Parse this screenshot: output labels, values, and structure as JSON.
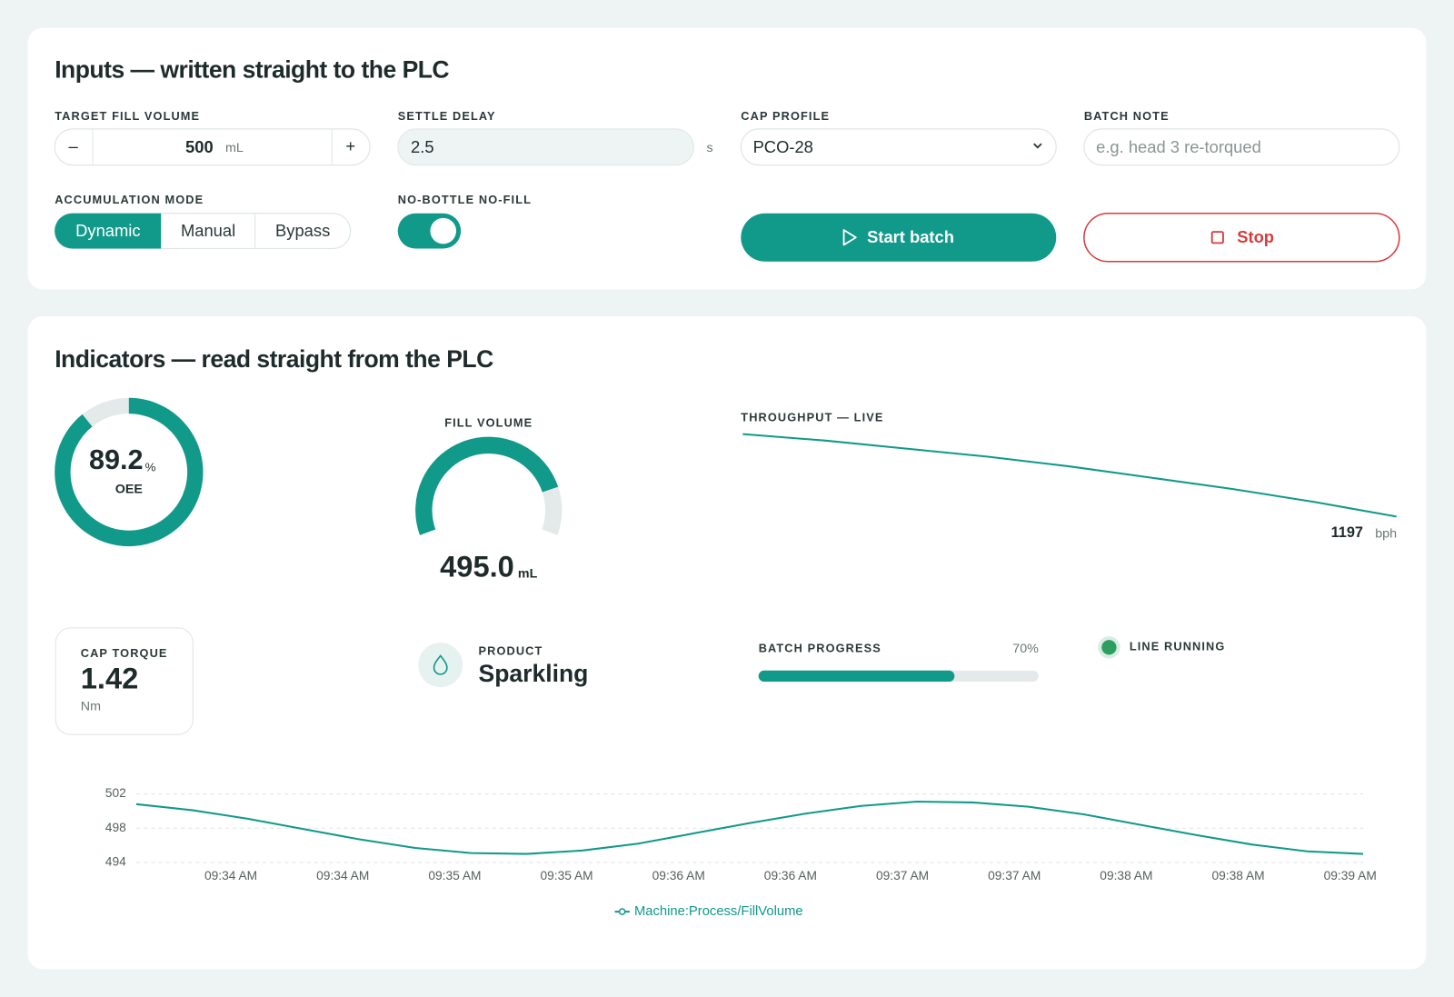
{
  "inputs": {
    "title": "Inputs — written straight to the PLC",
    "target_fill_volume": {
      "label": "TARGET FILL VOLUME",
      "minus": "–",
      "plus": "+",
      "value": 500,
      "unit": "mL"
    },
    "settle_delay": {
      "label": "SETTLE DELAY",
      "value": "2.5",
      "unit": "s"
    },
    "cap_profile": {
      "label": "CAP PROFILE",
      "value": "PCO-28"
    },
    "batch_note": {
      "label": "BATCH NOTE",
      "placeholder": "e.g. head 3 re-torqued"
    },
    "accumulation_mode": {
      "label": "ACCUMULATION MODE",
      "options": [
        "Dynamic",
        "Manual",
        "Bypass"
      ],
      "selected": 0
    },
    "no_bottle_no_fill": {
      "label": "NO-BOTTLE NO-FILL",
      "on": true
    },
    "start_button": "Start batch",
    "stop_button": "Stop"
  },
  "indicators": {
    "title": "Indicators — read straight from the PLC",
    "oee": {
      "value": 89.2,
      "unit": "%",
      "label": "OEE",
      "range": [
        0,
        100
      ]
    },
    "fill_volume": {
      "label": "FILL VOLUME",
      "value": 495.0,
      "value_label": "495.0",
      "unit": "mL",
      "range": [
        0,
        600
      ]
    },
    "throughput": {
      "label": "THROUGHPUT — LIVE",
      "value": 1197,
      "unit": "bph",
      "values": [
        1248,
        1244,
        1239,
        1234,
        1228,
        1221,
        1214,
        1206,
        1197
      ]
    },
    "cap_torque": {
      "label": "CAP TORQUE",
      "value": 1.42,
      "unit": "Nm"
    },
    "product": {
      "label": "PRODUCT",
      "value": "Sparkling"
    },
    "batch_progress": {
      "label": "BATCH PROGRESS",
      "value": 70,
      "value_label": "70%",
      "range": [
        0,
        100
      ]
    },
    "line_status": {
      "label": "LINE RUNNING"
    }
  },
  "trend": {
    "type": "line",
    "xticks": [
      "09:34 AM",
      "09:34 AM",
      "09:35 AM",
      "09:35 AM",
      "09:36 AM",
      "09:36 AM",
      "09:37 AM",
      "09:37 AM",
      "09:38 AM",
      "09:38 AM",
      "09:39 AM"
    ],
    "ylim": [
      494,
      502
    ],
    "yticks": [
      494,
      498,
      502
    ],
    "grid": true,
    "series": [
      {
        "name": "Machine:Process/FillVolume",
        "color": "#11998a",
        "values": [
          500.8,
          500.1,
          499.1,
          497.9,
          496.7,
          495.7,
          495.1,
          495.0,
          495.4,
          496.2,
          497.4,
          498.6,
          499.7,
          500.6,
          501.1,
          501.0,
          500.5,
          499.6,
          498.4,
          497.2,
          496.1,
          495.3,
          495.0
        ]
      }
    ]
  }
}
